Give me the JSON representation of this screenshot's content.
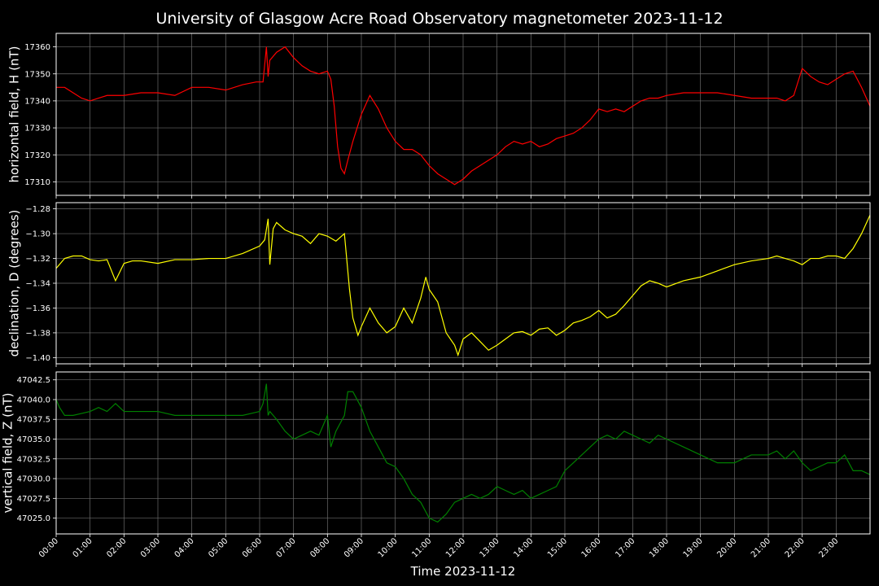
{
  "chart_data": {
    "type": "line",
    "title": "University of Glasgow Acre Road Observatory magnetometer 2023-11-12",
    "xlabel": "Time 2023-11-12",
    "x_ticks": [
      "00:00",
      "01:00",
      "02:00",
      "03:00",
      "04:00",
      "05:00",
      "06:00",
      "07:00",
      "08:00",
      "09:00",
      "10:00",
      "11:00",
      "12:00",
      "13:00",
      "14:00",
      "15:00",
      "16:00",
      "17:00",
      "18:00",
      "19:00",
      "20:00",
      "21:00",
      "22:00",
      "23:00"
    ],
    "x_unit": "hours",
    "xlim": [
      0,
      24
    ],
    "grid": true,
    "panels": [
      {
        "ylabel": "horizontal field, H (nT)",
        "color": "#ff0000",
        "ylim": [
          17305,
          17365
        ],
        "y_ticks": [
          "17310",
          "17320",
          "17330",
          "17340",
          "17350",
          "17360"
        ],
        "y_tick_values": [
          17310,
          17320,
          17330,
          17340,
          17350,
          17360
        ],
        "series": [
          {
            "x": [
              0,
              0.25,
              0.5,
              0.75,
              1,
              1.5,
              2,
              2.5,
              3,
              3.5,
              4,
              4.5,
              5,
              5.5,
              5.9,
              6.1,
              6.2,
              6.25,
              6.3,
              6.5,
              6.75,
              7,
              7.25,
              7.5,
              7.75,
              8,
              8.1,
              8.2,
              8.3,
              8.4,
              8.5,
              8.6,
              8.75,
              9,
              9.25,
              9.5,
              9.75,
              10,
              10.25,
              10.5,
              10.75,
              11,
              11.25,
              11.5,
              11.75,
              12,
              12.25,
              12.5,
              12.75,
              13,
              13.25,
              13.5,
              13.75,
              14,
              14.25,
              14.5,
              14.75,
              15,
              15.25,
              15.5,
              15.75,
              16,
              16.25,
              16.5,
              16.75,
              17,
              17.25,
              17.5,
              17.75,
              18,
              18.5,
              19,
              19.5,
              20,
              20.5,
              21,
              21.25,
              21.5,
              21.75,
              22,
              22.25,
              22.5,
              22.75,
              23,
              23.25,
              23.5,
              23.75,
              24
            ],
            "y": [
              17345,
              17345,
              17343,
              17341,
              17340,
              17342,
              17342,
              17343,
              17343,
              17342,
              17345,
              17345,
              17344,
              17346,
              17347,
              17347,
              17360,
              17349,
              17355,
              17358,
              17360,
              17356,
              17353,
              17351,
              17350,
              17351,
              17348,
              17338,
              17323,
              17315,
              17313,
              17318,
              17325,
              17335,
              17342,
              17337,
              17330,
              17325,
              17322,
              17322,
              17320,
              17316,
              17313,
              17311,
              17309,
              17311,
              17314,
              17316,
              17318,
              17320,
              17323,
              17325,
              17324,
              17325,
              17323,
              17324,
              17326,
              17327,
              17328,
              17330,
              17333,
              17337,
              17336,
              17337,
              17336,
              17338,
              17340,
              17341,
              17341,
              17342,
              17343,
              17343,
              17343,
              17342,
              17341,
              17341,
              17341,
              17340,
              17342,
              17352,
              17349,
              17347,
              17346,
              17348,
              17350,
              17351,
              17345,
              17338
            ]
          }
        ]
      },
      {
        "ylabel": "declination, D (degrees)",
        "color": "#ffff00",
        "ylim": [
          -1.405,
          -1.275
        ],
        "y_ticks": [
          "−1.28",
          "−1.30",
          "−1.32",
          "−1.34",
          "−1.36",
          "−1.38",
          "−1.40"
        ],
        "y_tick_values": [
          -1.28,
          -1.3,
          -1.32,
          -1.34,
          -1.36,
          -1.38,
          -1.4
        ],
        "series": [
          {
            "x": [
              0,
              0.25,
              0.5,
              0.75,
              1,
              1.25,
              1.5,
              1.75,
              2,
              2.25,
              2.5,
              3,
              3.5,
              4,
              4.5,
              5,
              5.5,
              6,
              6.15,
              6.25,
              6.3,
              6.4,
              6.5,
              6.75,
              7,
              7.25,
              7.5,
              7.75,
              8,
              8.25,
              8.5,
              8.65,
              8.75,
              8.9,
              9,
              9.25,
              9.5,
              9.75,
              10,
              10.25,
              10.5,
              10.75,
              10.9,
              11,
              11.25,
              11.5,
              11.75,
              11.85,
              12,
              12.25,
              12.5,
              12.75,
              13,
              13.25,
              13.5,
              13.75,
              14,
              14.25,
              14.5,
              14.75,
              15,
              15.25,
              15.5,
              15.75,
              16,
              16.25,
              16.5,
              16.75,
              17,
              17.25,
              17.5,
              17.75,
              18,
              18.5,
              19,
              19.5,
              20,
              20.5,
              21,
              21.25,
              21.5,
              21.75,
              22,
              22.25,
              22.5,
              22.75,
              23,
              23.25,
              23.5,
              23.75,
              24
            ],
            "y": [
              -1.328,
              -1.32,
              -1.318,
              -1.318,
              -1.321,
              -1.322,
              -1.321,
              -1.338,
              -1.324,
              -1.322,
              -1.322,
              -1.324,
              -1.321,
              -1.321,
              -1.32,
              -1.32,
              -1.316,
              -1.31,
              -1.305,
              -1.288,
              -1.325,
              -1.296,
              -1.291,
              -1.297,
              -1.3,
              -1.302,
              -1.308,
              -1.3,
              -1.302,
              -1.306,
              -1.3,
              -1.345,
              -1.368,
              -1.382,
              -1.375,
              -1.36,
              -1.372,
              -1.38,
              -1.375,
              -1.36,
              -1.372,
              -1.352,
              -1.335,
              -1.345,
              -1.355,
              -1.38,
              -1.39,
              -1.398,
              -1.385,
              -1.38,
              -1.387,
              -1.394,
              -1.39,
              -1.385,
              -1.38,
              -1.379,
              -1.382,
              -1.377,
              -1.376,
              -1.382,
              -1.378,
              -1.372,
              -1.37,
              -1.367,
              -1.362,
              -1.368,
              -1.365,
              -1.358,
              -1.35,
              -1.342,
              -1.338,
              -1.34,
              -1.343,
              -1.338,
              -1.335,
              -1.33,
              -1.325,
              -1.322,
              -1.32,
              -1.318,
              -1.32,
              -1.322,
              -1.325,
              -1.32,
              -1.32,
              -1.318,
              -1.318,
              -1.32,
              -1.312,
              -1.3,
              -1.285
            ]
          }
        ]
      },
      {
        "ylabel": "vertical field, Z (nT)",
        "color": "#008000",
        "ylim": [
          47023,
          47043.5
        ],
        "y_ticks": [
          "47025.0",
          "47027.5",
          "47030.0",
          "47032.5",
          "47035.0",
          "47037.5",
          "47040.0",
          "47042.5"
        ],
        "y_tick_values": [
          47025.0,
          47027.5,
          47030.0,
          47032.5,
          47035.0,
          47037.5,
          47040.0,
          47042.5
        ],
        "series": [
          {
            "x": [
              0,
              0.1,
              0.25,
              0.5,
              1,
              1.25,
              1.5,
              1.75,
              2,
              2.5,
              3,
              3.5,
              4,
              4.5,
              5,
              5.5,
              6,
              6.1,
              6.2,
              6.25,
              6.3,
              6.5,
              6.75,
              7,
              7.25,
              7.5,
              7.75,
              8,
              8.1,
              8.25,
              8.5,
              8.6,
              8.75,
              9,
              9.25,
              9.5,
              9.75,
              10,
              10.25,
              10.5,
              10.75,
              11,
              11.25,
              11.5,
              11.75,
              12,
              12.25,
              12.5,
              12.75,
              13,
              13.25,
              13.5,
              13.75,
              14,
              14.25,
              14.5,
              14.75,
              15,
              15.25,
              15.5,
              15.75,
              16,
              16.25,
              16.5,
              16.75,
              17,
              17.25,
              17.5,
              17.75,
              18,
              18.5,
              19,
              19.5,
              20,
              20.5,
              21,
              21.25,
              21.5,
              21.75,
              22,
              22.25,
              22.5,
              22.75,
              23,
              23.25,
              23.5,
              23.75,
              24
            ],
            "y": [
              47040,
              47039,
              47038,
              47038,
              47038.5,
              47039,
              47038.5,
              47039.5,
              47038.5,
              47038.5,
              47038.5,
              47038,
              47038,
              47038,
              47038,
              47038,
              47038.5,
              47039.5,
              47042,
              47038,
              47038.5,
              47037.5,
              47036,
              47035,
              47035.5,
              47036,
              47035.5,
              47038,
              47034,
              47036,
              47038,
              47041,
              47041,
              47039,
              47036,
              47034,
              47032,
              47031.5,
              47030,
              47028,
              47027,
              47025,
              47024.5,
              47025.5,
              47027,
              47027.5,
              47028,
              47027.5,
              47028,
              47029,
              47028.5,
              47028,
              47028.5,
              47027.5,
              47028,
              47028.5,
              47029,
              47031,
              47032,
              47033,
              47034,
              47035,
              47035.5,
              47035,
              47036,
              47035.5,
              47035,
              47034.5,
              47035.5,
              47035,
              47034,
              47033,
              47032,
              47032,
              47033,
              47033,
              47033.5,
              47032.5,
              47033.5,
              47032,
              47031,
              47031.5,
              47032,
              47032,
              47033,
              47031,
              47031,
              47030.5
            ]
          }
        ]
      }
    ]
  }
}
